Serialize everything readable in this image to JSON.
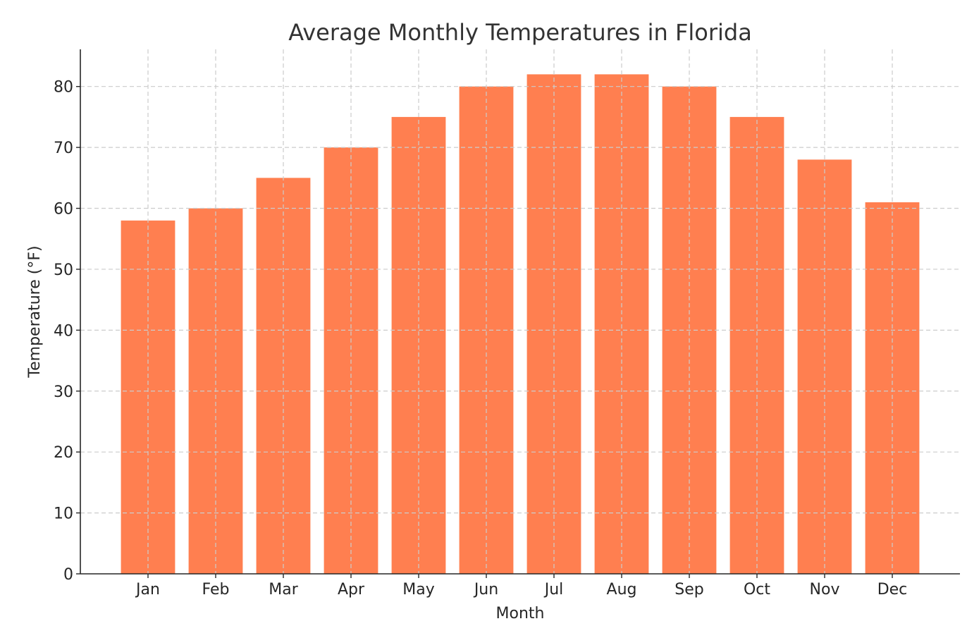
{
  "chart_data": {
    "type": "bar",
    "title": "Average Monthly Temperatures in Florida",
    "xlabel": "Month",
    "ylabel": "Temperature (°F)",
    "categories": [
      "Jan",
      "Feb",
      "Mar",
      "Apr",
      "May",
      "Jun",
      "Jul",
      "Aug",
      "Sep",
      "Oct",
      "Nov",
      "Dec"
    ],
    "values": [
      58,
      60,
      65,
      70,
      75,
      80,
      82,
      82,
      80,
      75,
      68,
      61
    ],
    "ylim": [
      0,
      86.1
    ],
    "yticks": [
      0,
      10,
      20,
      30,
      40,
      50,
      60,
      70,
      80
    ],
    "grid": true,
    "bar_color": "#FF7F50"
  }
}
